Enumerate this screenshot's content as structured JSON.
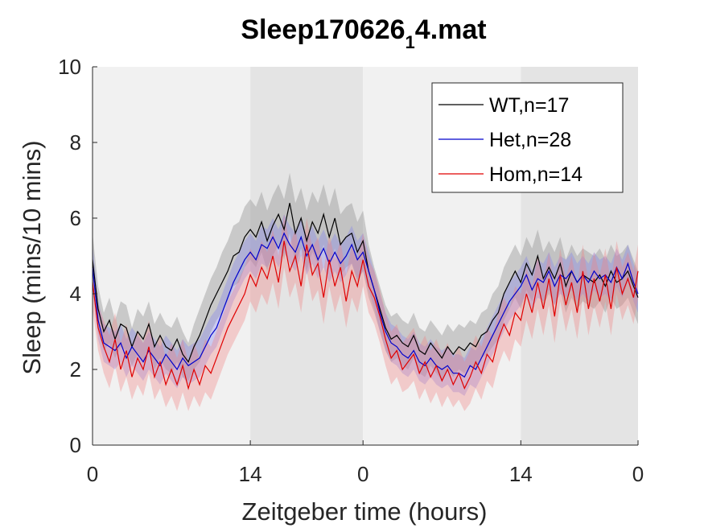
{
  "chart_data": {
    "type": "line",
    "title": "Sleep170626",
    "title_subscript": "1",
    "title_suffix": "4.mat",
    "xlabel": "Zeitgeber time (hours)",
    "ylabel": "Sleep (mins/10 mins)",
    "ylim": [
      0,
      10
    ],
    "xlim": [
      0,
      48.4
    ],
    "x_unit": "hours",
    "grid": false,
    "legend_position": "top-right",
    "yticks": [
      0,
      2,
      4,
      6,
      8,
      10
    ],
    "xticks": [
      {
        "position": 0,
        "label": "0"
      },
      {
        "position": 14,
        "label": "14"
      },
      {
        "position": 24,
        "label": "0"
      },
      {
        "position": 38,
        "label": "14"
      },
      {
        "position": 48.4,
        "label": "0"
      }
    ],
    "background_bands": [
      {
        "start": 0,
        "end": 14,
        "type": "light",
        "color": "#f1f1f1"
      },
      {
        "start": 14,
        "end": 24,
        "type": "dark",
        "color": "#e4e4e4"
      },
      {
        "start": 24,
        "end": 38,
        "type": "light",
        "color": "#f1f1f1"
      },
      {
        "start": 38,
        "end": 48.4,
        "type": "dark",
        "color": "#e4e4e4"
      }
    ],
    "series": [
      {
        "name": "WT,n=17",
        "color": "#000000",
        "band_color": "#9a9a9a",
        "band_opacity": 0.45,
        "x": [
          0,
          0.5,
          1,
          1.5,
          2,
          2.5,
          3,
          3.5,
          4,
          4.5,
          5,
          5.5,
          6,
          6.5,
          7,
          7.5,
          8,
          8.5,
          9,
          9.5,
          10,
          10.5,
          11,
          11.5,
          12,
          12.5,
          13,
          13.5,
          14,
          14.5,
          15,
          15.5,
          16,
          16.5,
          17,
          17.5,
          18,
          18.5,
          19,
          19.5,
          20,
          20.5,
          21,
          21.5,
          22,
          22.5,
          23,
          23.5,
          24,
          24.5,
          25,
          25.5,
          26,
          26.5,
          27,
          27.5,
          28,
          28.5,
          29,
          29.5,
          30,
          30.5,
          31,
          31.5,
          32,
          32.5,
          33,
          33.5,
          34,
          34.5,
          35,
          35.5,
          36,
          36.5,
          37,
          37.5,
          38,
          38.5,
          39,
          39.5,
          40,
          40.5,
          41,
          41.5,
          42,
          42.5,
          43,
          43.5,
          44,
          44.5,
          45,
          45.5,
          46,
          46.5,
          47,
          47.5,
          48,
          48.4
        ],
        "y": [
          4.9,
          3.6,
          3.0,
          3.3,
          2.8,
          3.2,
          3.1,
          2.6,
          3.0,
          2.8,
          3.2,
          2.6,
          2.9,
          2.6,
          2.5,
          2.8,
          2.4,
          2.2,
          2.6,
          2.9,
          3.3,
          3.7,
          4.0,
          4.3,
          4.6,
          5.0,
          5.1,
          5.5,
          5.7,
          5.5,
          5.9,
          5.4,
          5.8,
          6.1,
          5.7,
          6.4,
          5.6,
          6.0,
          5.4,
          5.9,
          5.6,
          6.1,
          5.5,
          6.0,
          5.3,
          5.5,
          5.6,
          5.1,
          5.4,
          4.6,
          4.1,
          3.6,
          3.1,
          2.8,
          2.9,
          2.7,
          2.6,
          2.9,
          2.5,
          2.4,
          2.7,
          2.5,
          2.3,
          2.6,
          2.4,
          2.6,
          2.5,
          2.7,
          2.6,
          2.9,
          3.0,
          3.3,
          3.5,
          4.0,
          4.3,
          4.6,
          4.3,
          4.8,
          4.5,
          5.0,
          4.4,
          4.7,
          4.4,
          4.8,
          4.2,
          4.6,
          4.3,
          4.5,
          4.4,
          4.3,
          4.5,
          4.2,
          4.6,
          4.3,
          4.4,
          4.6,
          4.2,
          3.9
        ],
        "lower": [
          4.2,
          3.0,
          2.5,
          2.7,
          2.3,
          2.6,
          2.5,
          2.1,
          2.4,
          2.2,
          2.6,
          2.0,
          2.3,
          2.0,
          1.9,
          2.2,
          1.8,
          1.7,
          2.0,
          2.2,
          2.6,
          3.0,
          3.3,
          3.5,
          3.8,
          4.2,
          4.3,
          4.7,
          4.9,
          4.7,
          5.1,
          4.6,
          5.0,
          5.3,
          4.9,
          5.6,
          4.8,
          5.2,
          4.6,
          5.1,
          4.8,
          5.3,
          4.7,
          5.2,
          4.5,
          4.7,
          4.8,
          4.3,
          4.6,
          3.9,
          3.5,
          3.0,
          2.5,
          2.2,
          2.3,
          2.1,
          2.0,
          2.3,
          1.9,
          1.8,
          2.1,
          1.9,
          1.7,
          2.0,
          1.8,
          2.0,
          1.9,
          2.1,
          2.0,
          2.3,
          2.4,
          2.6,
          2.8,
          3.3,
          3.6,
          3.9,
          3.6,
          4.1,
          3.8,
          4.3,
          3.7,
          4.0,
          3.7,
          4.1,
          3.5,
          3.9,
          3.6,
          3.8,
          3.7,
          3.6,
          3.8,
          3.5,
          3.9,
          3.6,
          3.7,
          3.9,
          3.5,
          3.2
        ],
        "upper": [
          5.6,
          4.2,
          3.5,
          3.9,
          3.3,
          3.8,
          3.7,
          3.1,
          3.6,
          3.4,
          3.8,
          3.2,
          3.5,
          3.2,
          3.1,
          3.4,
          3.0,
          2.7,
          3.2,
          3.6,
          4.0,
          4.4,
          4.7,
          5.1,
          5.4,
          5.8,
          5.9,
          6.3,
          6.5,
          6.3,
          6.7,
          6.2,
          6.6,
          6.9,
          6.5,
          7.2,
          6.4,
          6.8,
          6.2,
          6.7,
          6.4,
          6.9,
          6.3,
          6.8,
          6.1,
          6.3,
          6.4,
          5.9,
          6.2,
          5.3,
          4.7,
          4.2,
          3.7,
          3.4,
          3.5,
          3.3,
          3.2,
          3.5,
          3.1,
          3.0,
          3.3,
          3.1,
          2.9,
          3.2,
          3.0,
          3.2,
          3.1,
          3.3,
          3.2,
          3.5,
          3.6,
          4.0,
          4.2,
          4.7,
          5.0,
          5.3,
          5.0,
          5.5,
          5.2,
          5.7,
          5.1,
          5.4,
          5.1,
          5.5,
          4.9,
          5.3,
          5.0,
          5.2,
          5.1,
          5.0,
          5.2,
          4.9,
          5.3,
          5.0,
          5.1,
          5.3,
          4.9,
          4.6
        ]
      },
      {
        "name": "Het,n=28",
        "color": "#0000cc",
        "band_color": "#8080ee",
        "band_opacity": 0.35,
        "x": [
          0,
          0.5,
          1,
          1.5,
          2,
          2.5,
          3,
          3.5,
          4,
          4.5,
          5,
          5.5,
          6,
          6.5,
          7,
          7.5,
          8,
          8.5,
          9,
          9.5,
          10,
          10.5,
          11,
          11.5,
          12,
          12.5,
          13,
          13.5,
          14,
          14.5,
          15,
          15.5,
          16,
          16.5,
          17,
          17.5,
          18,
          18.5,
          19,
          19.5,
          20,
          20.5,
          21,
          21.5,
          22,
          22.5,
          23,
          23.5,
          24,
          24.5,
          25,
          25.5,
          26,
          26.5,
          27,
          27.5,
          28,
          28.5,
          29,
          29.5,
          30,
          30.5,
          31,
          31.5,
          32,
          32.5,
          33,
          33.5,
          34,
          34.5,
          35,
          35.5,
          36,
          36.5,
          37,
          37.5,
          38,
          38.5,
          39,
          39.5,
          40,
          40.5,
          41,
          41.5,
          42,
          42.5,
          43,
          43.5,
          44,
          44.5,
          45,
          45.5,
          46,
          46.5,
          47,
          47.5,
          48,
          48.4
        ],
        "y": [
          4.7,
          3.3,
          2.7,
          2.6,
          2.5,
          2.7,
          2.3,
          2.6,
          2.4,
          2.2,
          2.5,
          2.3,
          2.1,
          2.4,
          2.2,
          2.0,
          2.3,
          2.1,
          2.2,
          2.3,
          2.6,
          2.9,
          3.1,
          3.5,
          3.9,
          4.3,
          4.6,
          4.9,
          5.1,
          4.9,
          5.3,
          5.2,
          5.5,
          5.2,
          5.6,
          5.3,
          5.1,
          5.5,
          5.0,
          5.3,
          4.9,
          5.2,
          4.8,
          5.1,
          4.8,
          5.0,
          5.3,
          4.9,
          5.1,
          4.6,
          4.1,
          3.5,
          3.0,
          2.7,
          2.6,
          2.4,
          2.3,
          2.5,
          2.2,
          2.1,
          2.3,
          2.1,
          2.0,
          2.1,
          1.9,
          1.9,
          1.8,
          2.1,
          2.0,
          2.3,
          2.6,
          2.9,
          3.2,
          3.5,
          3.8,
          4.0,
          4.2,
          4.5,
          4.1,
          4.4,
          4.3,
          4.6,
          4.2,
          4.5,
          4.4,
          4.6,
          4.3,
          4.5,
          4.3,
          4.6,
          4.4,
          4.5,
          4.3,
          4.7,
          4.4,
          4.8,
          4.3,
          4.0
        ],
        "lower": [
          4.1,
          2.8,
          2.2,
          2.1,
          2.0,
          2.2,
          1.8,
          2.1,
          1.9,
          1.7,
          2.0,
          1.8,
          1.6,
          1.9,
          1.7,
          1.5,
          1.8,
          1.6,
          1.7,
          1.8,
          2.1,
          2.4,
          2.6,
          3.0,
          3.4,
          3.8,
          4.1,
          4.4,
          4.6,
          4.4,
          4.8,
          4.7,
          5.0,
          4.7,
          5.1,
          4.8,
          4.6,
          5.0,
          4.5,
          4.8,
          4.4,
          4.7,
          4.3,
          4.6,
          4.3,
          4.5,
          4.8,
          4.4,
          4.6,
          4.1,
          3.6,
          3.0,
          2.5,
          2.2,
          2.1,
          1.9,
          1.8,
          2.0,
          1.7,
          1.6,
          1.8,
          1.6,
          1.5,
          1.6,
          1.4,
          1.4,
          1.3,
          1.6,
          1.5,
          1.8,
          2.1,
          2.4,
          2.7,
          3.0,
          3.3,
          3.5,
          3.7,
          4.0,
          3.6,
          3.9,
          3.8,
          4.1,
          3.7,
          4.0,
          3.9,
          4.1,
          3.8,
          4.0,
          3.8,
          4.1,
          3.9,
          4.0,
          3.8,
          4.2,
          3.9,
          4.3,
          3.8,
          3.5
        ],
        "upper": [
          5.3,
          3.8,
          3.2,
          3.1,
          3.0,
          3.2,
          2.8,
          3.1,
          2.9,
          2.7,
          3.0,
          2.8,
          2.6,
          2.9,
          2.7,
          2.5,
          2.8,
          2.6,
          2.7,
          2.8,
          3.1,
          3.4,
          3.6,
          4.0,
          4.4,
          4.8,
          5.1,
          5.4,
          5.6,
          5.4,
          5.8,
          5.7,
          6.0,
          5.7,
          6.1,
          5.8,
          5.6,
          6.0,
          5.5,
          5.8,
          5.4,
          5.7,
          5.3,
          5.6,
          5.3,
          5.5,
          5.8,
          5.4,
          5.6,
          5.1,
          4.6,
          4.0,
          3.5,
          3.2,
          3.1,
          2.9,
          2.8,
          3.0,
          2.7,
          2.6,
          2.8,
          2.6,
          2.5,
          2.6,
          2.4,
          2.4,
          2.3,
          2.6,
          2.5,
          2.8,
          3.1,
          3.4,
          3.7,
          4.0,
          4.3,
          4.5,
          4.7,
          5.0,
          4.6,
          4.9,
          4.8,
          5.1,
          4.7,
          5.0,
          4.9,
          5.1,
          4.8,
          5.0,
          4.8,
          5.1,
          4.9,
          5.0,
          4.8,
          5.2,
          4.9,
          5.3,
          4.8,
          4.5
        ]
      },
      {
        "name": "Hom,n=14",
        "color": "#e00000",
        "band_color": "#f08080",
        "band_opacity": 0.35,
        "x": [
          0,
          0.5,
          1,
          1.5,
          2,
          2.5,
          3,
          3.5,
          4,
          4.5,
          5,
          5.5,
          6,
          6.5,
          7,
          7.5,
          8,
          8.5,
          9,
          9.5,
          10,
          10.5,
          11,
          11.5,
          12,
          12.5,
          13,
          13.5,
          14,
          14.5,
          15,
          15.5,
          16,
          16.5,
          17,
          17.5,
          18,
          18.5,
          19,
          19.5,
          20,
          20.5,
          21,
          21.5,
          22,
          22.5,
          23,
          23.5,
          24,
          24.5,
          25,
          25.5,
          26,
          26.5,
          27,
          27.5,
          28,
          28.5,
          29,
          29.5,
          30,
          30.5,
          31,
          31.5,
          32,
          32.5,
          33,
          33.5,
          34,
          34.5,
          35,
          35.5,
          36,
          36.5,
          37,
          37.5,
          38,
          38.5,
          39,
          39.5,
          40,
          40.5,
          41,
          41.5,
          42,
          42.5,
          43,
          43.5,
          44,
          44.5,
          45,
          45.5,
          46,
          46.5,
          47,
          47.5,
          48,
          48.4
        ],
        "y": [
          4.3,
          3.1,
          2.6,
          2.2,
          2.8,
          2.0,
          2.5,
          1.8,
          2.3,
          2.0,
          2.6,
          1.8,
          2.2,
          1.6,
          2.0,
          1.6,
          2.1,
          1.5,
          2.0,
          1.6,
          2.1,
          1.9,
          2.3,
          2.7,
          3.1,
          3.4,
          3.7,
          4.0,
          4.5,
          4.2,
          4.7,
          4.4,
          5.0,
          4.3,
          5.4,
          4.6,
          5.0,
          4.2,
          5.3,
          4.5,
          4.8,
          3.9,
          4.9,
          4.2,
          4.7,
          3.8,
          4.6,
          4.2,
          4.9,
          4.2,
          3.9,
          3.4,
          2.8,
          2.3,
          2.5,
          2.0,
          2.2,
          2.4,
          1.9,
          2.2,
          1.8,
          2.1,
          1.7,
          2.0,
          1.6,
          1.9,
          1.5,
          1.8,
          2.2,
          1.9,
          2.4,
          2.2,
          2.8,
          3.2,
          2.9,
          3.5,
          3.3,
          4.0,
          3.5,
          4.3,
          3.6,
          4.4,
          3.4,
          4.5,
          3.7,
          4.3,
          3.5,
          4.6,
          3.6,
          4.4,
          3.8,
          4.5,
          3.6,
          4.7,
          4.0,
          4.4,
          3.9,
          4.6
        ],
        "lower": [
          3.6,
          2.5,
          1.9,
          1.5,
          2.1,
          1.4,
          1.8,
          1.2,
          1.6,
          1.3,
          1.9,
          1.2,
          1.5,
          1.0,
          1.3,
          0.9,
          1.4,
          0.9,
          1.3,
          1.0,
          1.4,
          1.2,
          1.6,
          2.0,
          2.4,
          2.7,
          3.0,
          3.3,
          3.8,
          3.5,
          4.0,
          3.7,
          4.3,
          3.6,
          4.7,
          3.9,
          4.3,
          3.5,
          4.6,
          3.8,
          4.1,
          3.2,
          4.2,
          3.5,
          4.0,
          3.1,
          3.9,
          3.5,
          4.2,
          3.5,
          3.2,
          2.7,
          2.1,
          1.6,
          1.8,
          1.4,
          1.5,
          1.7,
          1.2,
          1.5,
          1.1,
          1.4,
          1.0,
          1.3,
          1.0,
          1.2,
          0.9,
          1.1,
          1.5,
          1.2,
          1.7,
          1.5,
          2.1,
          2.5,
          2.2,
          2.8,
          2.6,
          3.3,
          2.8,
          3.6,
          2.9,
          3.7,
          2.7,
          3.8,
          3.0,
          3.6,
          2.8,
          3.9,
          2.9,
          3.7,
          3.1,
          3.8,
          2.9,
          4.0,
          3.3,
          3.7,
          3.2,
          3.9
        ],
        "upper": [
          5.0,
          3.7,
          3.3,
          2.9,
          3.5,
          2.7,
          3.2,
          2.5,
          3.0,
          2.7,
          3.3,
          2.5,
          2.9,
          2.3,
          2.7,
          2.3,
          2.8,
          2.2,
          2.7,
          2.3,
          2.8,
          2.6,
          3.0,
          3.4,
          3.8,
          4.1,
          4.4,
          4.7,
          5.2,
          4.9,
          5.4,
          5.1,
          5.7,
          5.0,
          6.1,
          5.3,
          5.7,
          4.9,
          6.0,
          5.2,
          5.5,
          4.6,
          5.6,
          4.9,
          5.4,
          4.5,
          5.3,
          4.9,
          5.6,
          4.9,
          4.6,
          4.1,
          3.5,
          3.0,
          3.2,
          2.7,
          2.9,
          3.1,
          2.6,
          2.9,
          2.5,
          2.8,
          2.4,
          2.7,
          2.3,
          2.6,
          2.2,
          2.5,
          2.9,
          2.6,
          3.1,
          2.9,
          3.5,
          3.9,
          3.6,
          4.2,
          4.0,
          4.7,
          4.2,
          5.0,
          4.3,
          5.1,
          4.1,
          5.2,
          4.4,
          5.0,
          4.2,
          5.3,
          4.3,
          5.1,
          4.5,
          5.2,
          4.3,
          5.4,
          4.7,
          5.1,
          4.6,
          5.3
        ]
      }
    ]
  }
}
